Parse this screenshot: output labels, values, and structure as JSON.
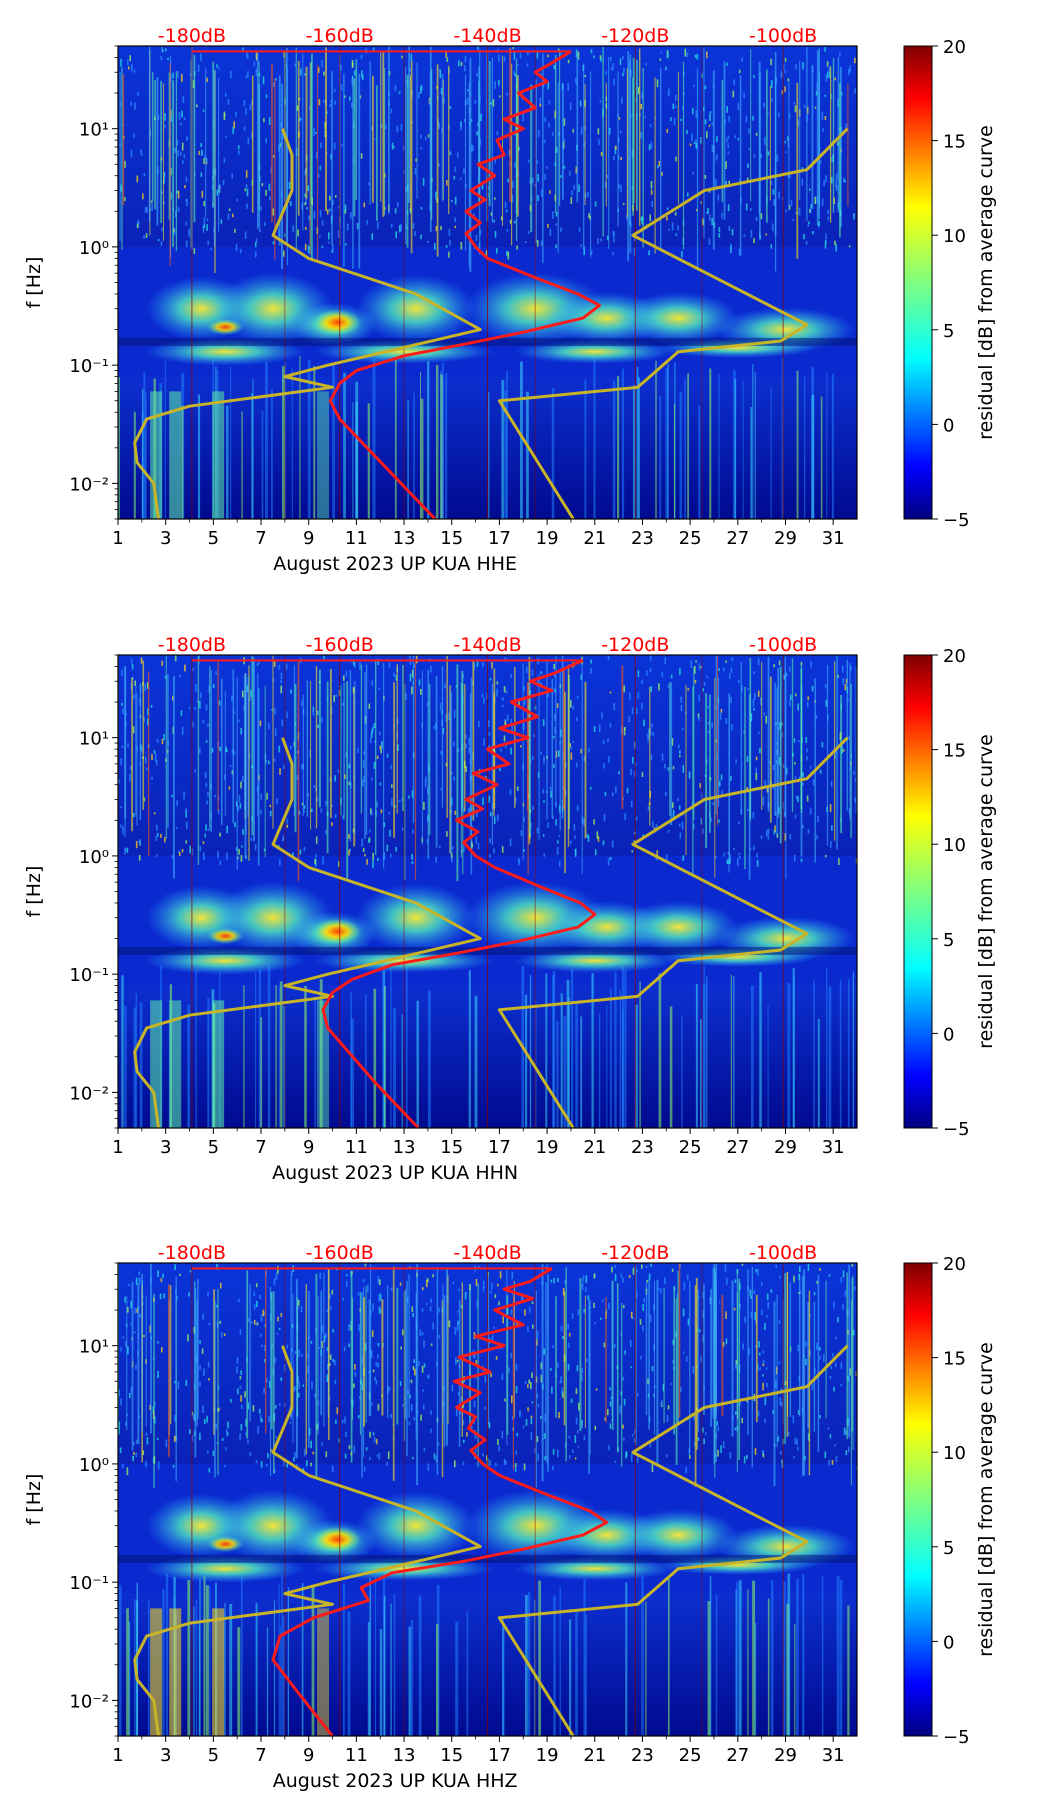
{
  "chart_data": [
    {
      "type": "heatmap",
      "channel": "HHE",
      "xlabel": "August 2023 UP KUA  HHE",
      "ylabel": "f [Hz]",
      "xlim": [
        1,
        32
      ],
      "ylim": [
        0.005,
        50
      ],
      "yscale": "log",
      "x_ticks": [
        1,
        3,
        5,
        7,
        9,
        11,
        13,
        15,
        17,
        19,
        21,
        23,
        25,
        27,
        29,
        31
      ],
      "y_ticks": [
        {
          "value": 0.01,
          "label": "10⁻²"
        },
        {
          "value": 0.1,
          "label": "10⁻¹"
        },
        {
          "value": 1,
          "label": "10⁰"
        },
        {
          "value": 10,
          "label": "10¹"
        }
      ],
      "db_axis": {
        "labels": [
          "-180dB",
          "-160dB",
          "-140dB",
          "-120dB",
          "-100dB"
        ],
        "positions": [
          4.1,
          10.3,
          16.5,
          22.7,
          28.9
        ]
      },
      "colorbar": {
        "label": "residual [dB] from average curve",
        "range": [
          -5,
          20
        ],
        "ticks": [
          -5,
          0,
          5,
          10,
          15,
          20
        ],
        "tick_labels": [
          "−5",
          "0",
          "5",
          "10",
          "15",
          "20"
        ]
      },
      "curves": {
        "mean_psd_red": [
          [
            16.0,
            45
          ],
          [
            20.0,
            45
          ],
          [
            19.1,
            35
          ],
          [
            18.5,
            30
          ],
          [
            19.0,
            25
          ],
          [
            17.8,
            20
          ],
          [
            18.5,
            15
          ],
          [
            17.2,
            12
          ],
          [
            18.0,
            10
          ],
          [
            16.9,
            8
          ],
          [
            17.2,
            6
          ],
          [
            16.1,
            5
          ],
          [
            16.8,
            4
          ],
          [
            15.8,
            3
          ],
          [
            16.4,
            2.5
          ],
          [
            15.6,
            2
          ],
          [
            16.2,
            1.6
          ],
          [
            15.6,
            1.3
          ],
          [
            16.0,
            1.0
          ],
          [
            16.5,
            0.8
          ],
          [
            18.5,
            0.55
          ],
          [
            20.3,
            0.4
          ],
          [
            21.2,
            0.32
          ],
          [
            20.5,
            0.25
          ],
          [
            18.0,
            0.19
          ],
          [
            15.5,
            0.15
          ],
          [
            13.0,
            0.12
          ],
          [
            11.0,
            0.09
          ],
          [
            10.3,
            0.07
          ],
          [
            9.9,
            0.05
          ],
          [
            10.3,
            0.035
          ],
          [
            12.5,
            0.012
          ],
          [
            14.3,
            0.005
          ]
        ],
        "nhnm_yellow": [
          [
            31.6,
            10
          ],
          [
            29.9,
            4.5
          ],
          [
            25.6,
            3.0
          ],
          [
            22.6,
            1.25
          ],
          [
            29.9,
            0.22
          ],
          [
            28.8,
            0.16
          ],
          [
            24.5,
            0.13
          ],
          [
            22.8,
            0.065
          ],
          [
            17.0,
            0.05
          ],
          [
            20.1,
            0.005
          ]
        ],
        "nlnm_yellow": [
          [
            7.9,
            10
          ],
          [
            8.3,
            6
          ],
          [
            8.3,
            3
          ],
          [
            7.5,
            1.25
          ],
          [
            9.0,
            0.8
          ],
          [
            13.5,
            0.4
          ],
          [
            16.2,
            0.2
          ],
          [
            9.8,
            0.1
          ],
          [
            8.0,
            0.08
          ],
          [
            10.0,
            0.065
          ],
          [
            4.0,
            0.045
          ],
          [
            2.2,
            0.035
          ],
          [
            1.7,
            0.022
          ],
          [
            1.8,
            0.015
          ],
          [
            2.5,
            0.01
          ],
          [
            2.7,
            0.005
          ]
        ]
      }
    },
    {
      "type": "heatmap",
      "channel": "HHN",
      "xlabel": "August 2023 UP KUA  HHN",
      "ylabel": "f [Hz]",
      "xlim": [
        1,
        32
      ],
      "ylim": [
        0.005,
        50
      ],
      "yscale": "log",
      "x_ticks": [
        1,
        3,
        5,
        7,
        9,
        11,
        13,
        15,
        17,
        19,
        21,
        23,
        25,
        27,
        29,
        31
      ],
      "y_ticks": [
        {
          "value": 0.01,
          "label": "10⁻²"
        },
        {
          "value": 0.1,
          "label": "10⁻¹"
        },
        {
          "value": 1,
          "label": "10⁰"
        },
        {
          "value": 10,
          "label": "10¹"
        }
      ],
      "db_axis": {
        "labels": [
          "-180dB",
          "-160dB",
          "-140dB",
          "-120dB",
          "-100dB"
        ],
        "positions": [
          4.1,
          10.3,
          16.5,
          22.7,
          28.9
        ]
      },
      "colorbar": {
        "label": "residual [dB] from average curve",
        "range": [
          -5,
          20
        ],
        "ticks": [
          -5,
          0,
          5,
          10,
          15,
          20
        ],
        "tick_labels": [
          "−5",
          "0",
          "5",
          "10",
          "15",
          "20"
        ]
      },
      "curves": {
        "mean_psd_red": [
          [
            16.0,
            45
          ],
          [
            20.5,
            45
          ],
          [
            19.3,
            35
          ],
          [
            18.3,
            30
          ],
          [
            19.2,
            25
          ],
          [
            17.5,
            20
          ],
          [
            18.6,
            15
          ],
          [
            17.0,
            12
          ],
          [
            18.2,
            10
          ],
          [
            16.5,
            8
          ],
          [
            17.4,
            6
          ],
          [
            15.9,
            5
          ],
          [
            16.9,
            4
          ],
          [
            15.6,
            3
          ],
          [
            16.3,
            2.5
          ],
          [
            15.2,
            2
          ],
          [
            16.1,
            1.6
          ],
          [
            15.5,
            1.3
          ],
          [
            16.0,
            1.0
          ],
          [
            16.8,
            0.8
          ],
          [
            18.7,
            0.55
          ],
          [
            20.4,
            0.4
          ],
          [
            21.0,
            0.32
          ],
          [
            20.3,
            0.25
          ],
          [
            17.8,
            0.19
          ],
          [
            15.2,
            0.15
          ],
          [
            12.5,
            0.12
          ],
          [
            10.8,
            0.09
          ],
          [
            10.0,
            0.07
          ],
          [
            9.6,
            0.05
          ],
          [
            9.8,
            0.035
          ],
          [
            11.8,
            0.012
          ],
          [
            13.6,
            0.005
          ]
        ],
        "nhnm_yellow": [
          [
            31.6,
            10
          ],
          [
            29.9,
            4.5
          ],
          [
            25.6,
            3.0
          ],
          [
            22.6,
            1.25
          ],
          [
            29.9,
            0.22
          ],
          [
            28.8,
            0.16
          ],
          [
            24.5,
            0.13
          ],
          [
            22.8,
            0.065
          ],
          [
            17.0,
            0.05
          ],
          [
            20.1,
            0.005
          ]
        ],
        "nlnm_yellow": [
          [
            7.9,
            10
          ],
          [
            8.3,
            6
          ],
          [
            8.3,
            3
          ],
          [
            7.5,
            1.25
          ],
          [
            9.0,
            0.8
          ],
          [
            13.5,
            0.4
          ],
          [
            16.2,
            0.2
          ],
          [
            9.8,
            0.1
          ],
          [
            8.0,
            0.08
          ],
          [
            10.0,
            0.065
          ],
          [
            4.0,
            0.045
          ],
          [
            2.2,
            0.035
          ],
          [
            1.7,
            0.022
          ],
          [
            1.8,
            0.015
          ],
          [
            2.5,
            0.01
          ],
          [
            2.7,
            0.005
          ]
        ]
      }
    },
    {
      "type": "heatmap",
      "channel": "HHZ",
      "xlabel": "August 2023 UP KUA  HHZ",
      "ylabel": "f [Hz]",
      "xlim": [
        1,
        32
      ],
      "ylim": [
        0.005,
        50
      ],
      "yscale": "log",
      "x_ticks": [
        1,
        3,
        5,
        7,
        9,
        11,
        13,
        15,
        17,
        19,
        21,
        23,
        25,
        27,
        29,
        31
      ],
      "y_ticks": [
        {
          "value": 0.01,
          "label": "10⁻²"
        },
        {
          "value": 0.1,
          "label": "10⁻¹"
        },
        {
          "value": 1,
          "label": "10⁰"
        },
        {
          "value": 10,
          "label": "10¹"
        }
      ],
      "db_axis": {
        "labels": [
          "-180dB",
          "-160dB",
          "-140dB",
          "-120dB",
          "-100dB"
        ],
        "positions": [
          4.1,
          10.3,
          16.5,
          22.7,
          28.9
        ]
      },
      "colorbar": {
        "label": "residual [dB] from average curve",
        "range": [
          -5,
          20
        ],
        "ticks": [
          -5,
          0,
          5,
          10,
          15,
          20
        ],
        "tick_labels": [
          "−5",
          "0",
          "5",
          "10",
          "15",
          "20"
        ]
      },
      "curves": {
        "mean_psd_red": [
          [
            15.5,
            45
          ],
          [
            19.2,
            45
          ],
          [
            18.3,
            35
          ],
          [
            17.2,
            30
          ],
          [
            18.4,
            25
          ],
          [
            16.8,
            20
          ],
          [
            18.0,
            15
          ],
          [
            16.0,
            12
          ],
          [
            17.2,
            10
          ],
          [
            15.3,
            8
          ],
          [
            16.6,
            6
          ],
          [
            15.1,
            5
          ],
          [
            16.2,
            4
          ],
          [
            15.2,
            3
          ],
          [
            16.0,
            2.5
          ],
          [
            15.7,
            2
          ],
          [
            16.4,
            1.6
          ],
          [
            15.8,
            1.3
          ],
          [
            16.3,
            1.0
          ],
          [
            17.0,
            0.8
          ],
          [
            19.0,
            0.55
          ],
          [
            20.8,
            0.4
          ],
          [
            21.5,
            0.32
          ],
          [
            20.5,
            0.25
          ],
          [
            18.0,
            0.19
          ],
          [
            15.5,
            0.15
          ],
          [
            12.5,
            0.12
          ],
          [
            11.2,
            0.09
          ],
          [
            11.5,
            0.07
          ],
          [
            9.2,
            0.05
          ],
          [
            7.8,
            0.035
          ],
          [
            7.5,
            0.022
          ],
          [
            8.5,
            0.012
          ],
          [
            10.0,
            0.005
          ]
        ],
        "nhnm_yellow": [
          [
            31.6,
            10
          ],
          [
            29.9,
            4.5
          ],
          [
            25.6,
            3.0
          ],
          [
            22.6,
            1.25
          ],
          [
            29.9,
            0.22
          ],
          [
            28.8,
            0.16
          ],
          [
            24.5,
            0.13
          ],
          [
            22.8,
            0.065
          ],
          [
            17.0,
            0.05
          ],
          [
            20.1,
            0.005
          ]
        ],
        "nlnm_yellow": [
          [
            7.9,
            10
          ],
          [
            8.3,
            6
          ],
          [
            8.3,
            3
          ],
          [
            7.5,
            1.25
          ],
          [
            9.0,
            0.8
          ],
          [
            13.5,
            0.4
          ],
          [
            16.2,
            0.2
          ],
          [
            9.8,
            0.1
          ],
          [
            8.0,
            0.08
          ],
          [
            10.0,
            0.065
          ],
          [
            4.0,
            0.045
          ],
          [
            2.2,
            0.035
          ],
          [
            1.7,
            0.022
          ],
          [
            1.8,
            0.015
          ],
          [
            2.5,
            0.01
          ],
          [
            2.7,
            0.005
          ]
        ]
      }
    }
  ],
  "colors": {
    "mean_curve": "#ff1a1a",
    "noise_model_curve": "#c8b428",
    "db_text": "#ff0000",
    "dB_gridline": "#8b0000"
  }
}
